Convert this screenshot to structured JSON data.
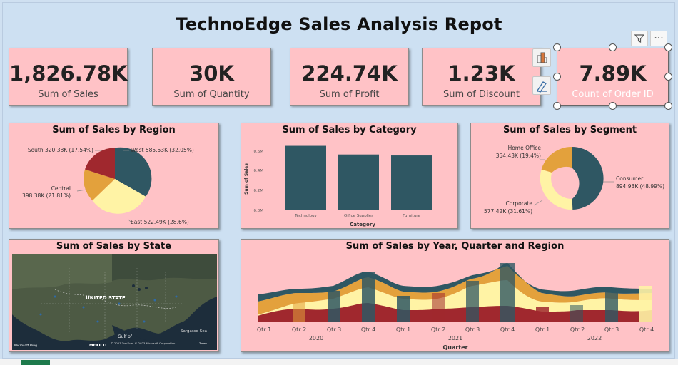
{
  "report": {
    "title": "TechnoEdge Sales Analysis Repot"
  },
  "kpis": [
    {
      "value": "1,826.78K",
      "label": "Sum of Sales"
    },
    {
      "value": "30K",
      "label": "Sum of Quantity"
    },
    {
      "value": "224.74K",
      "label": "Sum of Profit"
    },
    {
      "value": "1.23K",
      "label": "Sum of Discount"
    },
    {
      "value": "7.89K",
      "label": "Count of Order ID"
    }
  ],
  "visual_toolbar": {
    "filter_icon": "filter-icon",
    "more_icon": "more-options-icon",
    "more_label": "···"
  },
  "side_buttons": {
    "format_icon": "format-visual-icon",
    "analytics_icon": "analytics-icon"
  },
  "colors": {
    "teal": "#2f5763",
    "red": "#a0282e",
    "orange": "#e3a13c",
    "cream": "#fff3a5",
    "pink_bg": "#ffc2c6",
    "page_bg": "#cfe0f1"
  },
  "region_chart": {
    "title": "Sum of Sales by Region",
    "labels": [
      "West 585.53K (32.05%)",
      "East 522.49K (28.6%)",
      "Central",
      "398.38K (21.81%)",
      "South 320.38K (17.54%)"
    ]
  },
  "category_chart": {
    "title": "Sum of Sales by Category",
    "xlabel": "Category",
    "ylabel": "Sum of Sales",
    "yticks": [
      "0.0M",
      "0.2M",
      "0.4M",
      "0.6M"
    ]
  },
  "segment_chart": {
    "title": "Sum of Sales by Segment",
    "labels": [
      "Home Office",
      "354.43K (19.4%)",
      "Consumer",
      "894.93K (48.99%)",
      "Corporate",
      "577.42K (31.61%)"
    ]
  },
  "state_map": {
    "title": "Sum of Sales by State",
    "labels": [
      "UNITED STATE",
      "Gulf of",
      "Sargasso Sea",
      "MEXICO",
      "Microsoft Bing",
      "© 2023 TomTom, © 2023 Microsoft Corporation",
      "Terms"
    ]
  },
  "ribbon_chart": {
    "title": "Sum of Sales by Year, Quarter and Region",
    "xlabel": "Quarter",
    "quarters": [
      "Qtr 1",
      "Qtr 2",
      "Qtr 3",
      "Qtr 4",
      "Qtr 1",
      "Qtr 2",
      "Qtr 3",
      "Qtr 4",
      "Qtr 1",
      "Qtr 2",
      "Qtr 3",
      "Qtr 4"
    ],
    "years": [
      "2020",
      "2021",
      "2022"
    ]
  },
  "chart_data": [
    {
      "type": "pie",
      "title": "Sum of Sales by Region",
      "categories": [
        "West",
        "East",
        "Central",
        "South"
      ],
      "values": [
        585.53,
        522.49,
        398.38,
        320.38
      ],
      "unit": "K",
      "percentages": [
        32.05,
        28.6,
        21.81,
        17.54
      ],
      "colors": [
        "#2f5763",
        "#fff3a5",
        "#e3a13c",
        "#a0282e"
      ]
    },
    {
      "type": "bar",
      "title": "Sum of Sales by Category",
      "categories": [
        "Technology",
        "Office Supplies",
        "Furniture"
      ],
      "values": [
        0.67,
        0.58,
        0.57
      ],
      "unit": "M",
      "xlabel": "Category",
      "ylabel": "Sum of Sales",
      "ylim": [
        0,
        0.7
      ],
      "color": "#2f5763"
    },
    {
      "type": "pie",
      "title": "Sum of Sales by Segment",
      "categories": [
        "Consumer",
        "Corporate",
        "Home Office"
      ],
      "values": [
        894.93,
        577.42,
        354.43
      ],
      "unit": "K",
      "percentages": [
        48.99,
        31.61,
        19.4
      ],
      "colors": [
        "#2f5763",
        "#fff3a5",
        "#e3a13c"
      ]
    }
  ]
}
